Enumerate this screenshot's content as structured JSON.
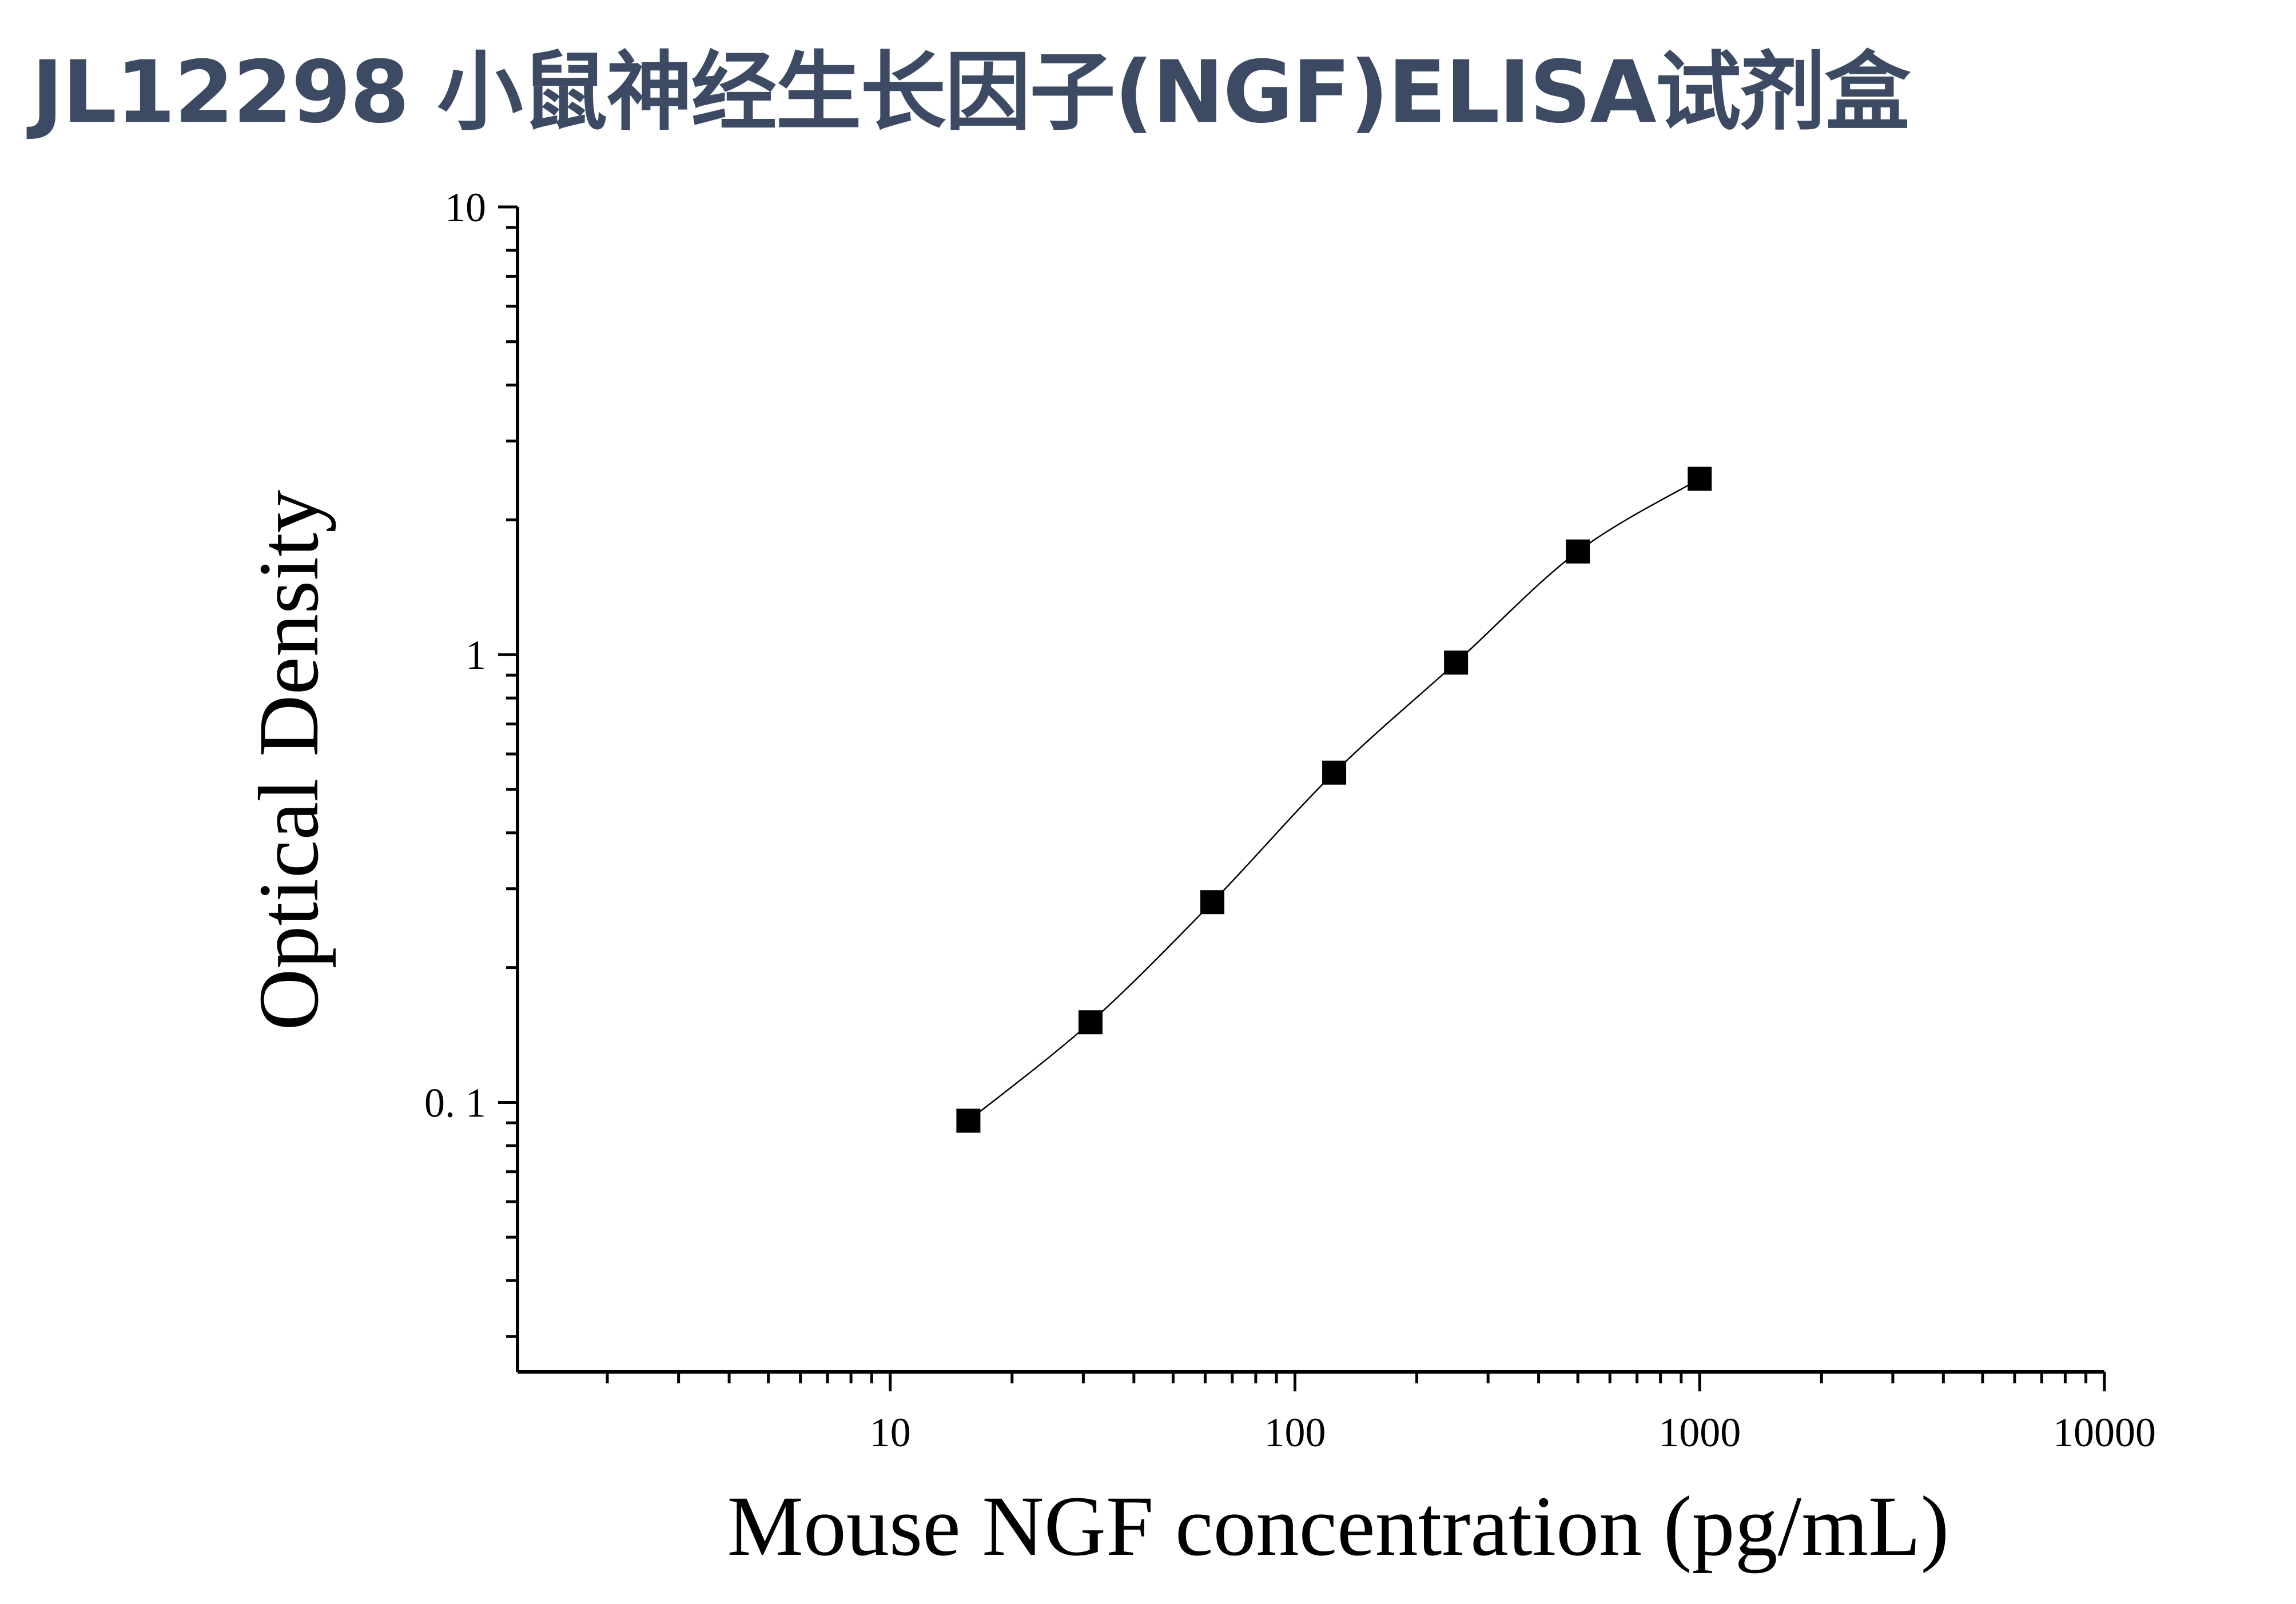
{
  "header": {
    "title": "JL12298 小鼠神经生长因子(NGF)ELISA试剂盒"
  },
  "chart_data": {
    "type": "scatter",
    "title": "JL12298 小鼠神经生长因子(NGF)ELISA试剂盒",
    "xlabel": "Mouse NGF concentration (pg/mL)",
    "ylabel": "Optical Density",
    "x_scale": "log",
    "y_scale": "log",
    "xlim": [
      1.2,
      10000
    ],
    "ylim": [
      0.025,
      10
    ],
    "x_ticks": [
      10,
      100,
      1000,
      10000
    ],
    "x_tick_labels": [
      "10",
      "100",
      "1000",
      "10000"
    ],
    "y_ticks": [
      0.1,
      1,
      10
    ],
    "y_tick_labels": [
      "0. 1",
      "1",
      "10"
    ],
    "grid": false,
    "series": [
      {
        "marker": "square",
        "color": "#000000",
        "fit_curve": true,
        "x": [
          15.6,
          31.25,
          62.5,
          125,
          250,
          500,
          1000
        ],
        "y": [
          0.091,
          0.151,
          0.28,
          0.545,
          0.96,
          1.7,
          2.47
        ]
      }
    ]
  }
}
